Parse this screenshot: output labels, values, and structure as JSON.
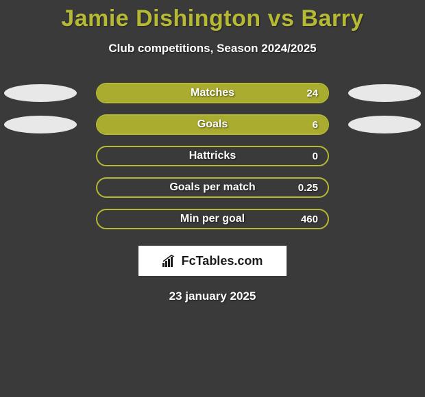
{
  "colors": {
    "background": "#3a3a3a",
    "title": "#b6b933",
    "subtitle": "#ffffff",
    "bar_border": "#b6b933",
    "bar_fill": "#a9ac2e",
    "ellipse_left": "#e8e8e8",
    "ellipse_right": "#e8e8e8",
    "text": "#ffffff",
    "brand_bg": "#ffffff",
    "brand_text": "#1a1a1a"
  },
  "title": "Jamie Dishington vs Barry",
  "subtitle": "Club competitions, Season 2024/2025",
  "stats": [
    {
      "label": "Matches",
      "value": "24",
      "fill_pct": 100,
      "left_ellipse": true,
      "right_ellipse": true
    },
    {
      "label": "Goals",
      "value": "6",
      "fill_pct": 100,
      "left_ellipse": true,
      "right_ellipse": true
    },
    {
      "label": "Hattricks",
      "value": "0",
      "fill_pct": 0,
      "left_ellipse": false,
      "right_ellipse": false
    },
    {
      "label": "Goals per match",
      "value": "0.25",
      "fill_pct": 0,
      "left_ellipse": false,
      "right_ellipse": false
    },
    {
      "label": "Min per goal",
      "value": "460",
      "fill_pct": 0,
      "left_ellipse": false,
      "right_ellipse": false
    }
  ],
  "brand": "FcTables.com",
  "date": "23 january 2025"
}
